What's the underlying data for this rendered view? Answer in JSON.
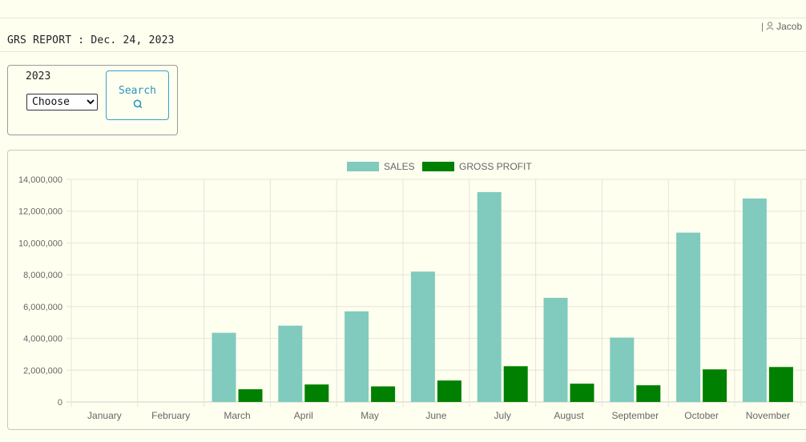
{
  "header": {
    "user_separator": "|",
    "user_name": "Jacob",
    "report_title": "GRS REPORT : Dec. 24, 2023"
  },
  "search": {
    "year_label": "2023",
    "month_options": [
      "Choose"
    ],
    "month_selected": "Choose",
    "button_label": "Search",
    "button_icon": "search-icon",
    "accent_color": "#35a2c8"
  },
  "chart_data": {
    "type": "bar",
    "title": "",
    "xlabel": "",
    "ylabel": "",
    "categories": [
      "January",
      "February",
      "March",
      "April",
      "May",
      "June",
      "July",
      "August",
      "September",
      "October",
      "November"
    ],
    "series": [
      {
        "name": "SALES",
        "color": "#80cbbd",
        "values": [
          0,
          0,
          4350000,
          4800000,
          5700000,
          8200000,
          13200000,
          6550000,
          4050000,
          10650000,
          12800000
        ]
      },
      {
        "name": "GROSS PROFIT",
        "color": "#008000",
        "values": [
          0,
          0,
          800000,
          1100000,
          980000,
          1350000,
          2250000,
          1150000,
          1050000,
          2050000,
          2200000
        ]
      }
    ],
    "ylim": [
      0,
      14000000
    ],
    "yticks": [
      0,
      2000000,
      4000000,
      6000000,
      8000000,
      10000000,
      12000000,
      14000000
    ],
    "ytick_labels": [
      "0",
      "2,000,000",
      "4,000,000",
      "6,000,000",
      "8,000,000",
      "10,000,000",
      "12,000,000",
      "14,000,000"
    ],
    "grid": true,
    "legend_position": "top-center"
  }
}
